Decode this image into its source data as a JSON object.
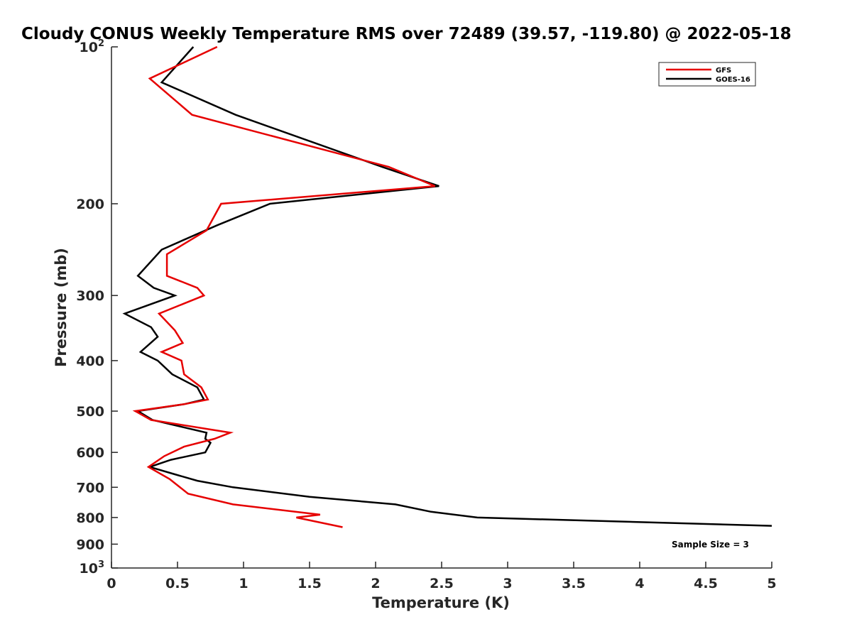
{
  "chart_data": {
    "type": "line",
    "title": "Cloudy CONUS Weekly Temperature RMS over 72489 (39.57, -119.80) @ 2022-05-18",
    "xlabel": "Temperature (K)",
    "ylabel": "Pressure (mb)",
    "xlim": [
      0,
      5
    ],
    "ylim": [
      100,
      1000
    ],
    "y_scale": "log",
    "y_reversed": true,
    "grid": false,
    "legend_position": "top-right",
    "x_ticks": [
      "0",
      "0.5",
      "1",
      "1.5",
      "2",
      "2.5",
      "3",
      "3.5",
      "4",
      "4.5",
      "5"
    ],
    "y_ticks": [
      {
        "value": 100,
        "base": "10",
        "exp": "2"
      },
      {
        "value": 200,
        "label": "200"
      },
      {
        "value": 300,
        "label": "300"
      },
      {
        "value": 400,
        "label": "400"
      },
      {
        "value": 500,
        "label": "500"
      },
      {
        "value": 600,
        "label": "600"
      },
      {
        "value": 700,
        "label": "700"
      },
      {
        "value": 800,
        "label": "800"
      },
      {
        "value": 900,
        "label": "900"
      },
      {
        "value": 1000,
        "base": "10",
        "exp": "3"
      }
    ],
    "annotation": "Sample Size = 3",
    "series": [
      {
        "name": "GFS",
        "color": "#e60000",
        "points": [
          [
            0.8,
            100
          ],
          [
            0.29,
            115
          ],
          [
            0.61,
            135
          ],
          [
            2.1,
            170
          ],
          [
            2.45,
            185
          ],
          [
            0.83,
            200
          ],
          [
            0.72,
            225
          ],
          [
            0.42,
            250
          ],
          [
            0.42,
            275
          ],
          [
            0.65,
            290
          ],
          [
            0.7,
            300
          ],
          [
            0.36,
            325
          ],
          [
            0.48,
            350
          ],
          [
            0.54,
            370
          ],
          [
            0.38,
            385
          ],
          [
            0.53,
            400
          ],
          [
            0.55,
            425
          ],
          [
            0.68,
            450
          ],
          [
            0.73,
            475
          ],
          [
            0.55,
            485
          ],
          [
            0.18,
            500
          ],
          [
            0.3,
            520
          ],
          [
            0.9,
            550
          ],
          [
            0.78,
            565
          ],
          [
            0.55,
            585
          ],
          [
            0.4,
            610
          ],
          [
            0.28,
            640
          ],
          [
            0.44,
            675
          ],
          [
            0.58,
            720
          ],
          [
            0.92,
            755
          ],
          [
            1.58,
            790
          ],
          [
            1.4,
            800
          ],
          [
            1.75,
            835
          ]
        ]
      },
      {
        "name": "GOES-16",
        "color": "#000000",
        "points": [
          [
            0.62,
            100
          ],
          [
            0.38,
            117
          ],
          [
            0.94,
            135
          ],
          [
            2.05,
            170
          ],
          [
            2.48,
            185
          ],
          [
            1.2,
            200
          ],
          [
            0.8,
            220
          ],
          [
            0.38,
            245
          ],
          [
            0.2,
            275
          ],
          [
            0.32,
            290
          ],
          [
            0.48,
            300
          ],
          [
            0.1,
            325
          ],
          [
            0.3,
            345
          ],
          [
            0.35,
            360
          ],
          [
            0.22,
            385
          ],
          [
            0.35,
            400
          ],
          [
            0.46,
            425
          ],
          [
            0.65,
            450
          ],
          [
            0.7,
            475
          ],
          [
            0.55,
            485
          ],
          [
            0.2,
            500
          ],
          [
            0.31,
            520
          ],
          [
            0.72,
            550
          ],
          [
            0.71,
            565
          ],
          [
            0.75,
            575
          ],
          [
            0.71,
            600
          ],
          [
            0.45,
            620
          ],
          [
            0.29,
            640
          ],
          [
            0.47,
            660
          ],
          [
            0.65,
            680
          ],
          [
            0.92,
            700
          ],
          [
            1.5,
            730
          ],
          [
            2.15,
            755
          ],
          [
            2.42,
            780
          ],
          [
            2.77,
            800
          ],
          [
            5.0,
            830
          ]
        ]
      }
    ]
  }
}
